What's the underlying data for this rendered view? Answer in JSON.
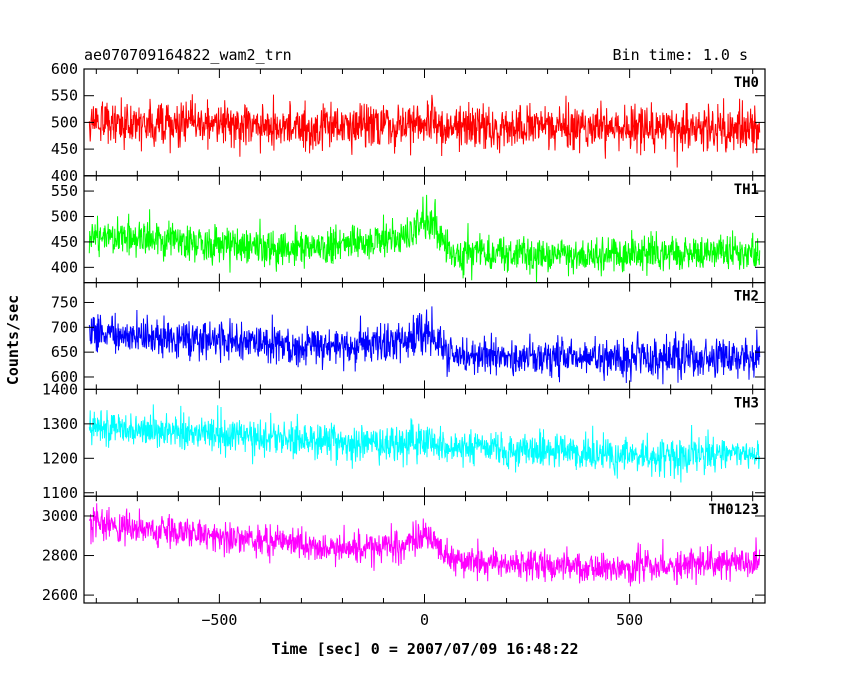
{
  "chart_data": {
    "type": "line",
    "title": "ae070709164822_wam2_trn",
    "subtitle": "Bin time: 1.0 s",
    "xlabel": "Time [sec] 0 = 2007/07/09 16:48:22",
    "ylabel": "Counts/sec",
    "xlim": [
      -830,
      830
    ],
    "x_ticks": [
      -500,
      0,
      500
    ],
    "x_tick_labels": [
      "−500",
      "0",
      "500"
    ],
    "grid": false,
    "panels": [
      {
        "name": "TH0",
        "color": "#ff0000",
        "ylim": [
          400,
          600
        ],
        "y_ticks": [
          400,
          450,
          500,
          550,
          600
        ],
        "x": [
          -800,
          -600,
          -400,
          -200,
          0,
          200,
          400,
          600,
          800
        ],
        "values": [
          500,
          500,
          495,
          490,
          497,
          492,
          490,
          492,
          490
        ],
        "noise": 30,
        "spike": {
          "x": 0,
          "amplitude": 25
        }
      },
      {
        "name": "TH1",
        "color": "#00ff00",
        "ylim": [
          370,
          580
        ],
        "y_ticks": [
          400,
          450,
          500,
          550
        ],
        "x": [
          -800,
          -600,
          -400,
          -200,
          -50,
          0,
          30,
          60,
          200,
          400,
          600,
          800
        ],
        "values": [
          465,
          450,
          440,
          440,
          460,
          490,
          470,
          430,
          425,
          425,
          430,
          430
        ],
        "noise": 25,
        "spike": {
          "x": 0,
          "amplitude": 60
        }
      },
      {
        "name": "TH2",
        "color": "#0000ff",
        "ylim": [
          575,
          790
        ],
        "y_ticks": [
          600,
          650,
          700,
          750
        ],
        "x": [
          -800,
          -600,
          -400,
          -200,
          -50,
          0,
          30,
          60,
          200,
          400,
          600,
          800
        ],
        "values": [
          690,
          675,
          665,
          660,
          670,
          690,
          670,
          645,
          640,
          640,
          640,
          640
        ],
        "noise": 28,
        "spike": {
          "x": 0,
          "amplitude": 80
        }
      },
      {
        "name": "TH3",
        "color": "#00ffff",
        "ylim": [
          1090,
          1400
        ],
        "y_ticks": [
          1100,
          1200,
          1300,
          1400
        ],
        "x": [
          -800,
          -600,
          -400,
          -200,
          0,
          200,
          400,
          600,
          800
        ],
        "values": [
          1290,
          1275,
          1260,
          1245,
          1240,
          1225,
          1210,
          1205,
          1215
        ],
        "noise": 38,
        "spike": {
          "x": 0,
          "amplitude": 90
        }
      },
      {
        "name": "TH0123",
        "color": "#ff00ff",
        "ylim": [
          2560,
          3100
        ],
        "y_ticks": [
          2600,
          2800,
          3000
        ],
        "x": [
          -800,
          -600,
          -400,
          -200,
          -50,
          0,
          30,
          60,
          200,
          400,
          600,
          800
        ],
        "values": [
          2960,
          2920,
          2870,
          2840,
          2850,
          2900,
          2870,
          2780,
          2760,
          2740,
          2750,
          2770
        ],
        "noise": 55,
        "spike": {
          "x": 0,
          "amplitude": 150
        }
      }
    ]
  }
}
